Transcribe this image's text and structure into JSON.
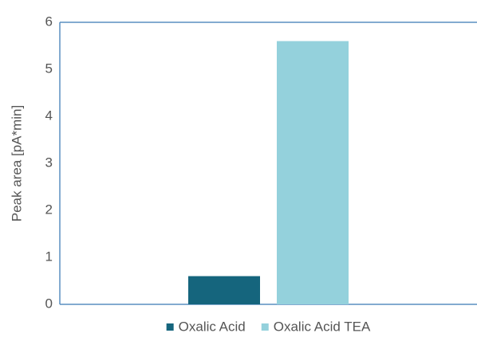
{
  "chart_data": {
    "type": "bar",
    "y_label": "Peak area [pA*min]",
    "categories": [
      null
    ],
    "series": [
      {
        "name": "Oxalic Acid",
        "color": "#15657d",
        "values": [
          0.6
        ]
      },
      {
        "name": "Oxalic Acid TEA",
        "color": "#94d1dc",
        "values": [
          5.6
        ]
      }
    ],
    "ylim": [
      0,
      6
    ],
    "yticks": [
      0,
      1,
      2,
      3,
      4,
      5,
      6
    ],
    "grid": false
  }
}
